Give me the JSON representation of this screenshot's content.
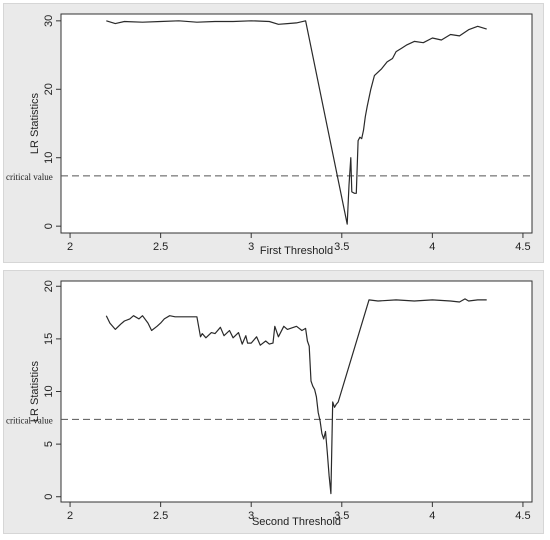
{
  "chart_data": [
    {
      "type": "line",
      "xlabel": "First Threshold",
      "ylabel": "LR Statistics",
      "xlim": [
        1.95,
        4.55
      ],
      "ylim": [
        -1,
        31
      ],
      "xticks": [
        2,
        2.5,
        3,
        3.5,
        4,
        4.5
      ],
      "xtick_labels": [
        "2",
        "2.5",
        "3",
        "3.5",
        "4",
        "4.5"
      ],
      "yticks": [
        0,
        10,
        20,
        30
      ],
      "ytick_labels": [
        "0",
        "10",
        "20",
        "30"
      ],
      "critical_value": 7.35,
      "critical_label": "critical value",
      "grid": false,
      "series": [
        {
          "x": [
            2.2,
            2.25,
            2.3,
            2.4,
            2.5,
            2.6,
            2.7,
            2.8,
            2.9,
            3.0,
            3.1,
            3.15,
            3.2,
            3.25,
            3.3,
            3.53,
            3.54,
            3.55,
            3.555,
            3.57,
            3.58,
            3.59,
            3.6,
            3.61,
            3.62,
            3.63,
            3.64,
            3.66,
            3.68,
            3.7,
            3.72,
            3.75,
            3.78,
            3.8,
            3.83,
            3.86,
            3.9,
            3.95,
            4.0,
            4.05,
            4.1,
            4.15,
            4.2,
            4.25,
            4.3
          ],
          "y": [
            30,
            29.6,
            29.9,
            29.8,
            29.9,
            30,
            29.8,
            29.9,
            29.9,
            30,
            29.9,
            29.5,
            29.6,
            29.7,
            30,
            0.3,
            6,
            10,
            5,
            4.8,
            4.8,
            12.5,
            13,
            12.8,
            14,
            16,
            17.5,
            20,
            22,
            22.5,
            23,
            24,
            24.5,
            25.5,
            26,
            26.5,
            27,
            26.8,
            27.5,
            27.2,
            28,
            27.8,
            28.7,
            29.2,
            28.8
          ]
        }
      ]
    },
    {
      "type": "line",
      "xlabel": "Second Threshold",
      "ylabel": "LR Statistics",
      "xlim": [
        1.95,
        4.55
      ],
      "ylim": [
        -0.5,
        20.5
      ],
      "xticks": [
        2,
        2.5,
        3,
        3.5,
        4,
        4.5
      ],
      "xtick_labels": [
        "2",
        "2.5",
        "3",
        "3.5",
        "4",
        "4.5"
      ],
      "yticks": [
        0,
        5,
        10,
        15,
        20
      ],
      "ytick_labels": [
        "0",
        "5",
        "10",
        "15",
        "20"
      ],
      "critical_value": 7.35,
      "critical_label": "critical value",
      "grid": false,
      "series": [
        {
          "x": [
            2.2,
            2.22,
            2.25,
            2.28,
            2.3,
            2.33,
            2.35,
            2.38,
            2.4,
            2.43,
            2.45,
            2.48,
            2.5,
            2.52,
            2.55,
            2.58,
            2.6,
            2.65,
            2.7,
            2.72,
            2.73,
            2.75,
            2.78,
            2.8,
            2.83,
            2.85,
            2.88,
            2.9,
            2.93,
            2.95,
            2.97,
            2.98,
            3.0,
            3.03,
            3.05,
            3.08,
            3.1,
            3.12,
            3.13,
            3.15,
            3.18,
            3.2,
            3.25,
            3.28,
            3.3,
            3.31,
            3.32,
            3.33,
            3.34,
            3.35,
            3.36,
            3.37,
            3.38,
            3.39,
            3.4,
            3.41,
            3.42,
            3.43,
            3.44,
            3.45,
            3.46,
            3.47,
            3.48,
            3.65,
            3.7,
            3.8,
            3.9,
            4.0,
            4.1,
            4.15,
            4.18,
            4.2,
            4.25,
            4.3
          ],
          "y": [
            17.2,
            16.5,
            15.9,
            16.4,
            16.7,
            16.9,
            17.2,
            16.9,
            17.2,
            16.5,
            15.8,
            16.2,
            16.5,
            16.9,
            17.2,
            17.1,
            17.1,
            17.1,
            17.1,
            15.2,
            15.5,
            15.1,
            15.6,
            15.5,
            16.1,
            15.3,
            15.8,
            15.1,
            15.6,
            14.5,
            15.3,
            14.6,
            14.6,
            15.2,
            14.4,
            14.8,
            14.5,
            14.6,
            16.2,
            15.2,
            16.2,
            15.9,
            16.2,
            15.8,
            16.0,
            14.8,
            14.3,
            11.0,
            10.5,
            10.2,
            9.5,
            8.0,
            7.2,
            6.0,
            5.5,
            6.2,
            4.2,
            2.0,
            0.3,
            9.0,
            8.5,
            8.8,
            9.0,
            18.7,
            18.6,
            18.7,
            18.6,
            18.7,
            18.6,
            18.5,
            18.8,
            18.6,
            18.7,
            18.7
          ]
        }
      ]
    }
  ]
}
